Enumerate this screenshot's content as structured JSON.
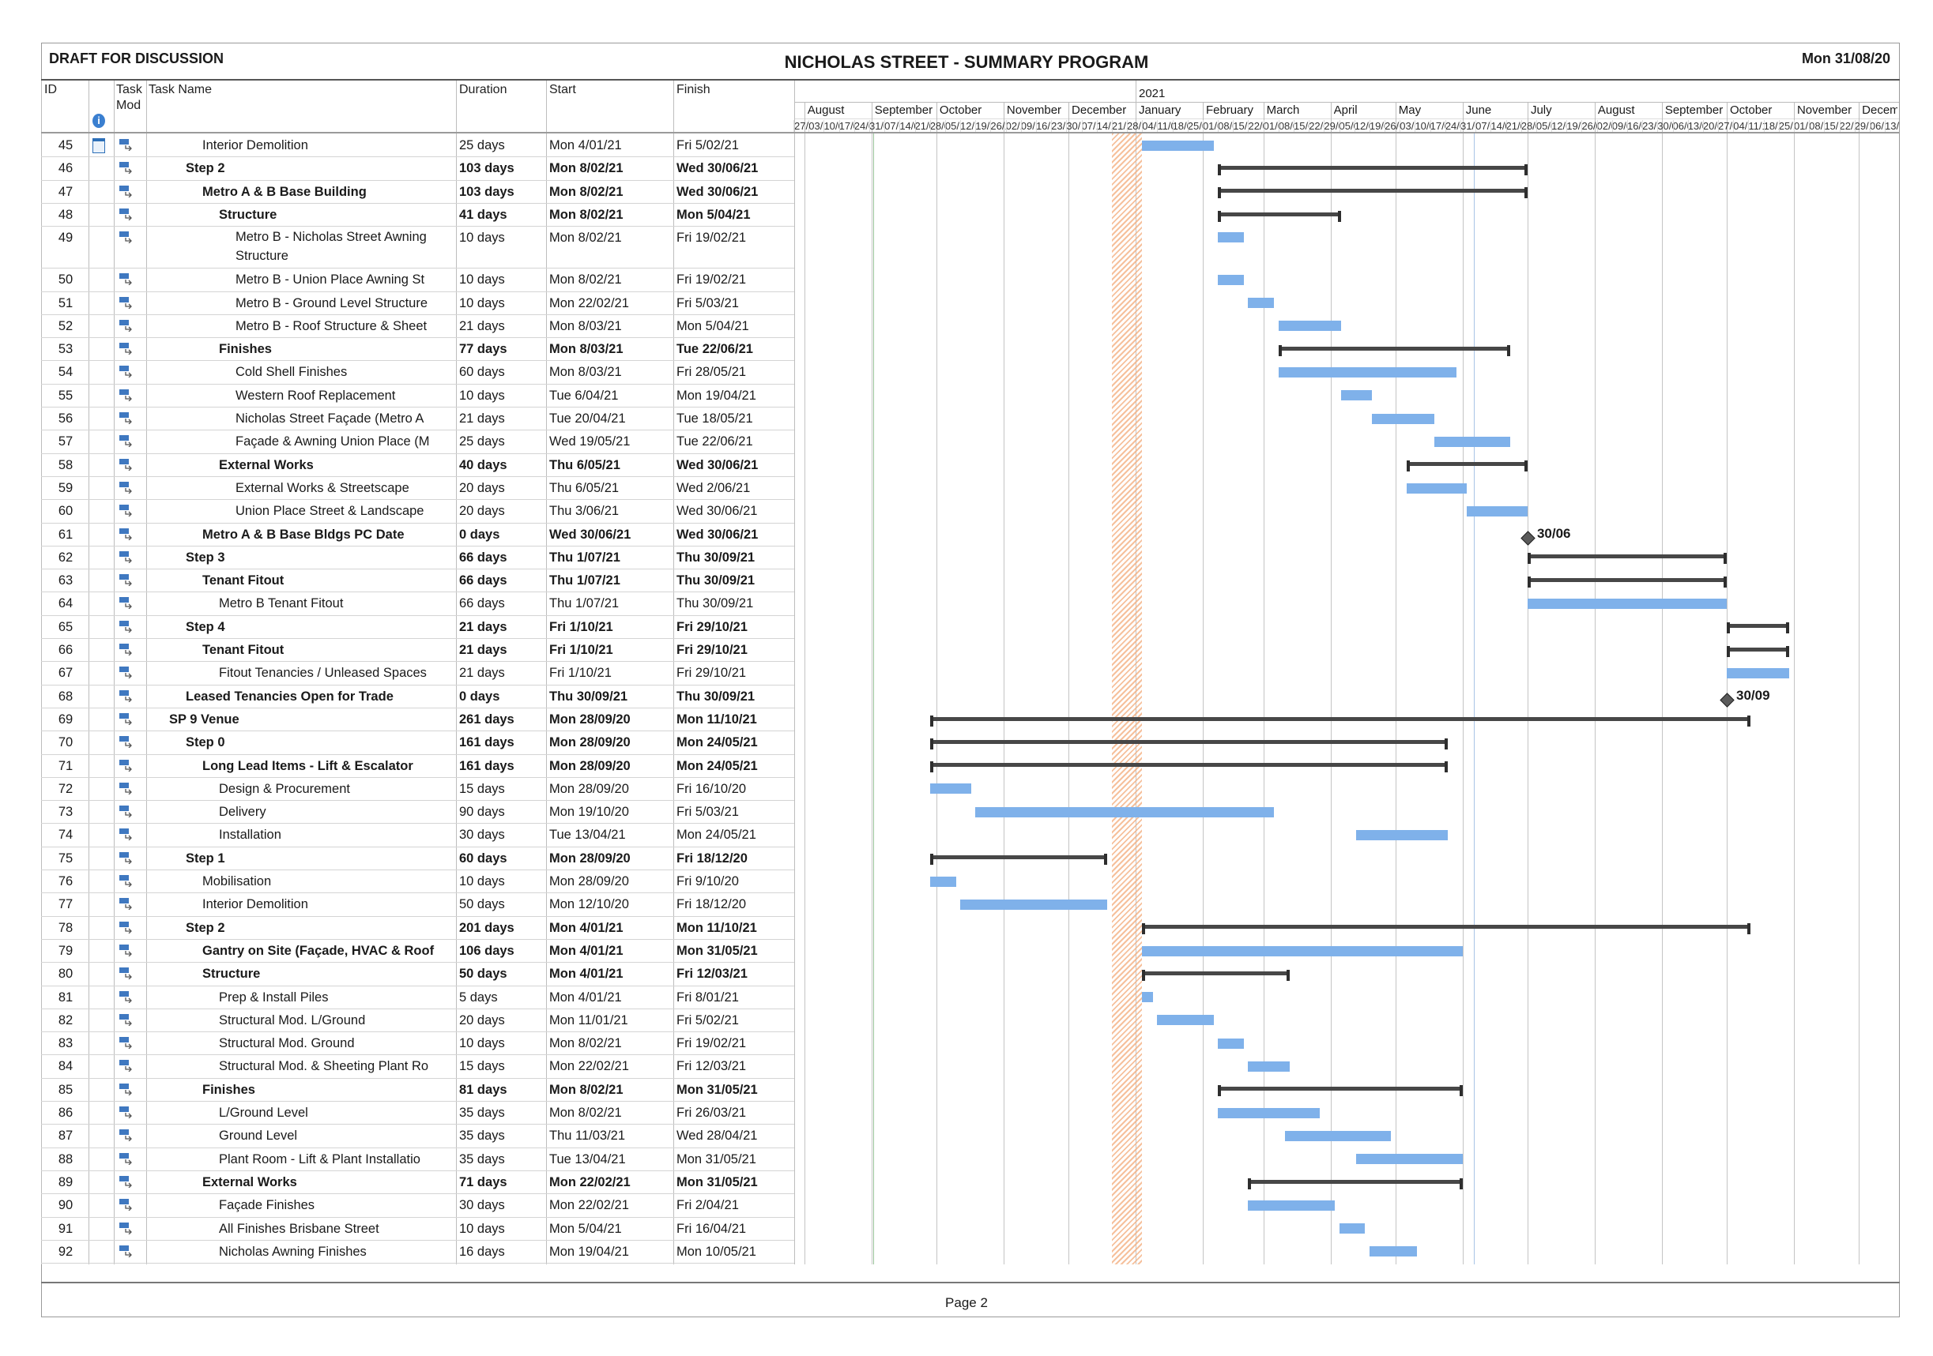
{
  "header": {
    "left": "DRAFT FOR DISCUSSION",
    "title": "NICHOLAS STREET - SUMMARY PROGRAM",
    "date": "Mon 31/08/20"
  },
  "columns": {
    "id": "ID",
    "indicators_icon": "info-icon",
    "mode_line1": "Task",
    "mode_line2": "Mod",
    "name": "Task Name",
    "duration": "Duration",
    "start": "Start",
    "finish": "Finish"
  },
  "timescale": {
    "year": "2021",
    "months": [
      "August",
      "September",
      "October",
      "November",
      "December",
      "January",
      "February",
      "March",
      "April",
      "May",
      "June",
      "July",
      "August",
      "September",
      "October",
      "November",
      "December"
    ],
    "month_starts": [
      "2020-08-01",
      "2020-09-01",
      "2020-10-01",
      "2020-11-01",
      "2020-12-01",
      "2021-01-01",
      "2021-02-01",
      "2021-03-01",
      "2021-04-01",
      "2021-05-01",
      "2021-06-01",
      "2021-07-01",
      "2021-08-01",
      "2021-09-01",
      "2021-10-01",
      "2021-11-01",
      "2021-12-01"
    ],
    "first_week": "2020-07-27",
    "nonworking": {
      "start": "2020-12-21",
      "end": "2021-01-03",
      "color": "#f4b183"
    }
  },
  "colors": {
    "task_bar": "#7fb1ea",
    "summary_bar": "#474747",
    "milestone": "#5a5a5a",
    "link": "#2f7ad6"
  },
  "footer": {
    "page": "Page 2"
  },
  "tasks": [
    {
      "id": "45",
      "name": "Interior Demolition",
      "level": 2,
      "type": "task",
      "bold": false,
      "duration": "25 days",
      "start": "Mon 4/01/21",
      "finish": "Fri 5/02/21",
      "indicator": "calendar-icon"
    },
    {
      "id": "46",
      "name": "Step 2",
      "level": 1,
      "type": "summary",
      "bold": true,
      "duration": "103 days",
      "start": "Mon 8/02/21",
      "finish": "Wed 30/06/21"
    },
    {
      "id": "47",
      "name": "Metro A & B Base Building",
      "level": 2,
      "type": "summary",
      "bold": true,
      "duration": "103 days",
      "start": "Mon 8/02/21",
      "finish": "Wed 30/06/21"
    },
    {
      "id": "48",
      "name": "Structure",
      "level": 3,
      "type": "summary",
      "bold": true,
      "duration": "41 days",
      "start": "Mon 8/02/21",
      "finish": "Mon 5/04/21"
    },
    {
      "id": "49",
      "name": "Metro B - Nicholas Street Awning Structure",
      "level": 4,
      "type": "task",
      "bold": false,
      "duration": "10 days",
      "start": "Mon 8/02/21",
      "finish": "Fri 19/02/21",
      "tall": true
    },
    {
      "id": "50",
      "name": "Metro B - Union Place Awning St",
      "level": 4,
      "type": "task",
      "bold": false,
      "duration": "10 days",
      "start": "Mon 8/02/21",
      "finish": "Fri 19/02/21"
    },
    {
      "id": "51",
      "name": "Metro B - Ground Level Structure",
      "level": 4,
      "type": "task",
      "bold": false,
      "duration": "10 days",
      "start": "Mon 22/02/21",
      "finish": "Fri 5/03/21"
    },
    {
      "id": "52",
      "name": "Metro B - Roof Structure & Sheet",
      "level": 4,
      "type": "task",
      "bold": false,
      "duration": "21 days",
      "start": "Mon 8/03/21",
      "finish": "Mon 5/04/21"
    },
    {
      "id": "53",
      "name": "Finishes",
      "level": 3,
      "type": "summary",
      "bold": true,
      "duration": "77 days",
      "start": "Mon 8/03/21",
      "finish": "Tue 22/06/21"
    },
    {
      "id": "54",
      "name": "Cold Shell Finishes",
      "level": 4,
      "type": "task",
      "bold": false,
      "duration": "60 days",
      "start": "Mon 8/03/21",
      "finish": "Fri 28/05/21"
    },
    {
      "id": "55",
      "name": "Western Roof Replacement",
      "level": 4,
      "type": "task",
      "bold": false,
      "duration": "10 days",
      "start": "Tue 6/04/21",
      "finish": "Mon 19/04/21"
    },
    {
      "id": "56",
      "name": "Nicholas Street Façade (Metro A",
      "level": 4,
      "type": "task",
      "bold": false,
      "duration": "21 days",
      "start": "Tue 20/04/21",
      "finish": "Tue 18/05/21"
    },
    {
      "id": "57",
      "name": "Façade & Awning Union Place (M",
      "level": 4,
      "type": "task",
      "bold": false,
      "duration": "25 days",
      "start": "Wed 19/05/21",
      "finish": "Tue 22/06/21"
    },
    {
      "id": "58",
      "name": "External Works",
      "level": 3,
      "type": "summary",
      "bold": true,
      "duration": "40 days",
      "start": "Thu 6/05/21",
      "finish": "Wed 30/06/21"
    },
    {
      "id": "59",
      "name": "External Works & Streetscape",
      "level": 4,
      "type": "task",
      "bold": false,
      "duration": "20 days",
      "start": "Thu 6/05/21",
      "finish": "Wed 2/06/21"
    },
    {
      "id": "60",
      "name": "Union Place Street & Landscape",
      "level": 4,
      "type": "task",
      "bold": false,
      "duration": "20 days",
      "start": "Thu 3/06/21",
      "finish": "Wed 30/06/21"
    },
    {
      "id": "61",
      "name": "Metro A & B Base Bldgs PC Date",
      "level": 2,
      "type": "milestone",
      "bold": true,
      "duration": "0 days",
      "start": "Wed 30/06/21",
      "finish": "Wed 30/06/21",
      "label": "30/06"
    },
    {
      "id": "62",
      "name": "Step 3",
      "level": 1,
      "type": "summary",
      "bold": true,
      "duration": "66 days",
      "start": "Thu 1/07/21",
      "finish": "Thu 30/09/21"
    },
    {
      "id": "63",
      "name": "Tenant Fitout",
      "level": 2,
      "type": "summary",
      "bold": true,
      "duration": "66 days",
      "start": "Thu 1/07/21",
      "finish": "Thu 30/09/21"
    },
    {
      "id": "64",
      "name": "Metro B Tenant Fitout",
      "level": 3,
      "type": "task",
      "bold": false,
      "duration": "66 days",
      "start": "Thu 1/07/21",
      "finish": "Thu 30/09/21"
    },
    {
      "id": "65",
      "name": "Step 4",
      "level": 1,
      "type": "summary",
      "bold": true,
      "duration": "21 days",
      "start": "Fri 1/10/21",
      "finish": "Fri 29/10/21"
    },
    {
      "id": "66",
      "name": "Tenant Fitout",
      "level": 2,
      "type": "summary",
      "bold": true,
      "duration": "21 days",
      "start": "Fri 1/10/21",
      "finish": "Fri 29/10/21"
    },
    {
      "id": "67",
      "name": "Fitout Tenancies / Unleased Spaces",
      "level": 3,
      "type": "task",
      "bold": false,
      "duration": "21 days",
      "start": "Fri 1/10/21",
      "finish": "Fri 29/10/21"
    },
    {
      "id": "68",
      "name": "Leased Tenancies Open for Trade",
      "level": 1,
      "type": "milestone",
      "bold": true,
      "duration": "0 days",
      "start": "Thu 30/09/21",
      "finish": "Thu 30/09/21",
      "label": "30/09"
    },
    {
      "id": "69",
      "name": "SP 9  Venue",
      "level": 0,
      "type": "summary",
      "bold": true,
      "duration": "261 days",
      "start": "Mon 28/09/20",
      "finish": "Mon 11/10/21"
    },
    {
      "id": "70",
      "name": "Step 0",
      "level": 1,
      "type": "summary",
      "bold": true,
      "duration": "161 days",
      "start": "Mon 28/09/20",
      "finish": "Mon 24/05/21"
    },
    {
      "id": "71",
      "name": "Long Lead Items - Lift & Escalator",
      "level": 2,
      "type": "summary",
      "bold": true,
      "duration": "161 days",
      "start": "Mon 28/09/20",
      "finish": "Mon 24/05/21"
    },
    {
      "id": "72",
      "name": "Design & Procurement",
      "level": 3,
      "type": "task",
      "bold": false,
      "duration": "15 days",
      "start": "Mon 28/09/20",
      "finish": "Fri 16/10/20"
    },
    {
      "id": "73",
      "name": "Delivery",
      "level": 3,
      "type": "task",
      "bold": false,
      "duration": "90 days",
      "start": "Mon 19/10/20",
      "finish": "Fri 5/03/21"
    },
    {
      "id": "74",
      "name": "Installation",
      "level": 3,
      "type": "task",
      "bold": false,
      "duration": "30 days",
      "start": "Tue 13/04/21",
      "finish": "Mon 24/05/21"
    },
    {
      "id": "75",
      "name": "Step 1",
      "level": 1,
      "type": "summary",
      "bold": true,
      "duration": "60 days",
      "start": "Mon 28/09/20",
      "finish": "Fri 18/12/20"
    },
    {
      "id": "76",
      "name": "Mobilisation",
      "level": 2,
      "type": "task",
      "bold": false,
      "duration": "10 days",
      "start": "Mon 28/09/20",
      "finish": "Fri 9/10/20"
    },
    {
      "id": "77",
      "name": "Interior Demolition",
      "level": 2,
      "type": "task",
      "bold": false,
      "duration": "50 days",
      "start": "Mon 12/10/20",
      "finish": "Fri 18/12/20"
    },
    {
      "id": "78",
      "name": "Step 2",
      "level": 1,
      "type": "summary",
      "bold": true,
      "duration": "201 days",
      "start": "Mon 4/01/21",
      "finish": "Mon 11/10/21"
    },
    {
      "id": "79",
      "name": "Gantry on Site (Façade, HVAC & Roof",
      "level": 2,
      "type": "task",
      "bold": true,
      "duration": "106 days",
      "start": "Mon 4/01/21",
      "finish": "Mon 31/05/21"
    },
    {
      "id": "80",
      "name": "Structure",
      "level": 2,
      "type": "summary",
      "bold": true,
      "duration": "50 days",
      "start": "Mon 4/01/21",
      "finish": "Fri 12/03/21"
    },
    {
      "id": "81",
      "name": "Prep & Install Piles",
      "level": 3,
      "type": "task",
      "bold": false,
      "duration": "5 days",
      "start": "Mon 4/01/21",
      "finish": "Fri 8/01/21"
    },
    {
      "id": "82",
      "name": "Structural Mod. L/Ground",
      "level": 3,
      "type": "task",
      "bold": false,
      "duration": "20 days",
      "start": "Mon 11/01/21",
      "finish": "Fri 5/02/21"
    },
    {
      "id": "83",
      "name": "Structural Mod. Ground",
      "level": 3,
      "type": "task",
      "bold": false,
      "duration": "10 days",
      "start": "Mon 8/02/21",
      "finish": "Fri 19/02/21"
    },
    {
      "id": "84",
      "name": "Structural Mod. & Sheeting Plant Ro",
      "level": 3,
      "type": "task",
      "bold": false,
      "duration": "15 days",
      "start": "Mon 22/02/21",
      "finish": "Fri 12/03/21"
    },
    {
      "id": "85",
      "name": "Finishes",
      "level": 2,
      "type": "summary",
      "bold": true,
      "duration": "81 days",
      "start": "Mon 8/02/21",
      "finish": "Mon 31/05/21"
    },
    {
      "id": "86",
      "name": "L/Ground Level",
      "level": 3,
      "type": "task",
      "bold": false,
      "duration": "35 days",
      "start": "Mon 8/02/21",
      "finish": "Fri 26/03/21"
    },
    {
      "id": "87",
      "name": "Ground Level",
      "level": 3,
      "type": "task",
      "bold": false,
      "duration": "35 days",
      "start": "Thu 11/03/21",
      "finish": "Wed 28/04/21"
    },
    {
      "id": "88",
      "name": "Plant Room - Lift & Plant Installatio",
      "level": 3,
      "type": "task",
      "bold": false,
      "duration": "35 days",
      "start": "Tue 13/04/21",
      "finish": "Mon 31/05/21"
    },
    {
      "id": "89",
      "name": "External Works",
      "level": 2,
      "type": "summary",
      "bold": true,
      "duration": "71 days",
      "start": "Mon 22/02/21",
      "finish": "Mon 31/05/21"
    },
    {
      "id": "90",
      "name": "Façade Finishes",
      "level": 3,
      "type": "task",
      "bold": false,
      "duration": "30 days",
      "start": "Mon 22/02/21",
      "finish": "Fri 2/04/21"
    },
    {
      "id": "91",
      "name": "All Finishes Brisbane Street",
      "level": 3,
      "type": "task",
      "bold": false,
      "duration": "10 days",
      "start": "Mon 5/04/21",
      "finish": "Fri 16/04/21"
    },
    {
      "id": "92",
      "name": "Nicholas Awning Finishes",
      "level": 3,
      "type": "task",
      "bold": false,
      "duration": "16 days",
      "start": "Mon 19/04/21",
      "finish": "Mon 10/05/21"
    }
  ]
}
